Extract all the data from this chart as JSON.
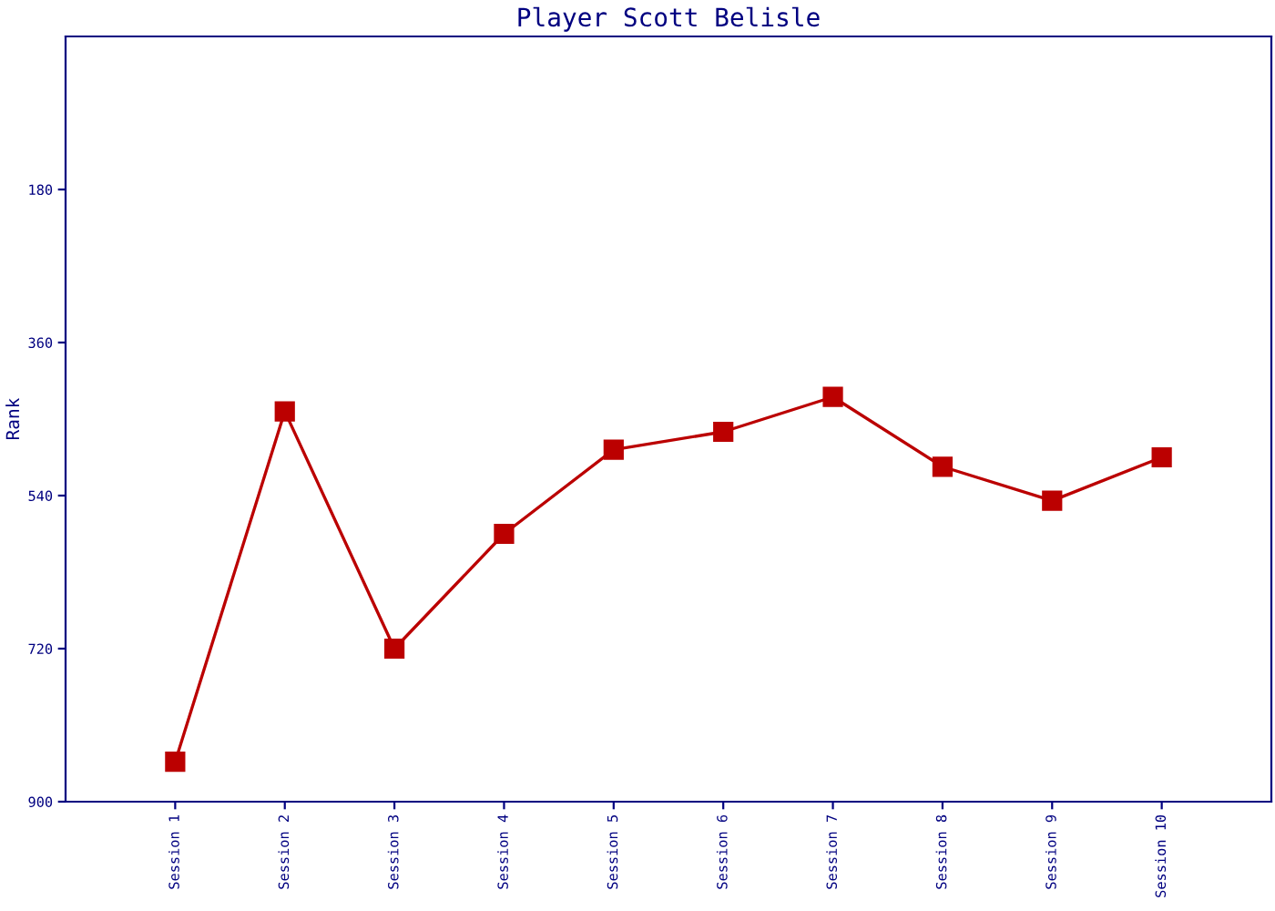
{
  "chart_data": {
    "type": "line",
    "title": "Player Scott Belisle",
    "ylabel": "Rank",
    "categories": [
      "Session 1",
      "Session 2",
      "Session 3",
      "Session 4",
      "Session 5",
      "Session 6",
      "Session 7",
      "Session 8",
      "Session 9",
      "Session 10"
    ],
    "series": [
      {
        "color": "#bb0000",
        "values": [
          853,
          441,
          720,
          585,
          486,
          465,
          424,
          506,
          546,
          495
        ]
      }
    ],
    "ylim": [
      900,
      0
    ],
    "yticks": [
      180,
      360,
      540,
      720,
      900
    ],
    "marker": "square",
    "line_style": "solid",
    "grid": false,
    "legend": false
  }
}
